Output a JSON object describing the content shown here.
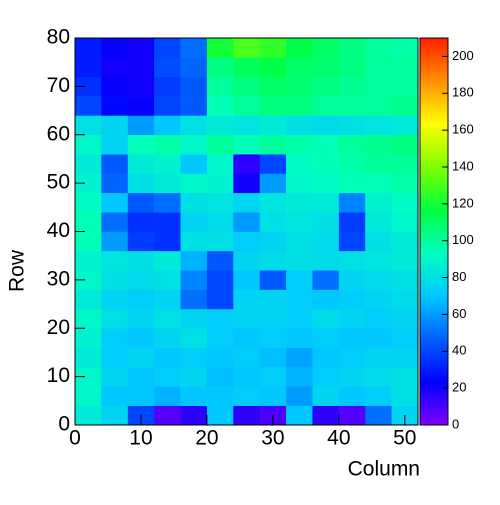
{
  "chart_data": {
    "type": "heatmap",
    "xlabel": "Column",
    "ylabel": "Row",
    "x_bins": [
      0,
      4,
      8,
      12,
      16,
      20,
      24,
      28,
      32,
      36,
      40,
      44,
      48,
      52
    ],
    "y_bins": [
      0,
      4,
      8,
      12,
      16,
      20,
      24,
      28,
      32,
      36,
      40,
      44,
      48,
      52,
      56,
      60,
      64,
      68,
      72,
      76,
      80
    ],
    "z": [
      [
        85,
        75,
        40,
        8,
        15,
        70,
        15,
        10,
        70,
        15,
        8,
        50,
        75
      ],
      [
        90,
        70,
        70,
        65,
        70,
        70,
        72,
        70,
        60,
        75,
        70,
        72,
        80
      ],
      [
        90,
        75,
        70,
        72,
        75,
        68,
        70,
        72,
        65,
        72,
        75,
        78,
        80
      ],
      [
        85,
        72,
        75,
        70,
        72,
        70,
        72,
        68,
        62,
        70,
        72,
        75,
        75
      ],
      [
        88,
        72,
        70,
        75,
        80,
        72,
        70,
        72,
        70,
        72,
        70,
        70,
        72
      ],
      [
        90,
        80,
        75,
        80,
        75,
        72,
        75,
        75,
        72,
        78,
        75,
        72,
        75
      ],
      [
        85,
        75,
        72,
        75,
        50,
        40,
        75,
        75,
        72,
        70,
        72,
        75,
        78
      ],
      [
        90,
        80,
        78,
        80,
        55,
        40,
        70,
        45,
        72,
        50,
        75,
        78,
        80
      ],
      [
        88,
        82,
        80,
        85,
        65,
        45,
        75,
        78,
        80,
        78,
        80,
        82,
        85
      ],
      [
        95,
        60,
        38,
        35,
        80,
        80,
        72,
        75,
        80,
        78,
        40,
        80,
        85
      ],
      [
        95,
        50,
        35,
        35,
        75,
        78,
        60,
        80,
        82,
        80,
        38,
        85,
        90
      ],
      [
        92,
        70,
        45,
        50,
        80,
        82,
        75,
        82,
        85,
        85,
        55,
        88,
        92
      ],
      [
        88,
        48,
        80,
        85,
        90,
        88,
        20,
        60,
        90,
        92,
        95,
        95,
        98
      ],
      [
        85,
        45,
        85,
        88,
        70,
        90,
        15,
        40,
        92,
        95,
        98,
        100,
        100
      ],
      [
        90,
        75,
        95,
        98,
        90,
        100,
        95,
        100,
        98,
        95,
        100,
        102,
        105
      ],
      [
        80,
        75,
        60,
        70,
        80,
        85,
        82,
        85,
        80,
        78,
        80,
        82,
        85
      ],
      [
        40,
        25,
        22,
        40,
        45,
        95,
        100,
        105,
        105,
        100,
        100,
        100,
        102
      ],
      [
        35,
        22,
        20,
        38,
        45,
        100,
        105,
        110,
        108,
        105,
        102,
        100,
        100
      ],
      [
        30,
        20,
        20,
        42,
        48,
        105,
        112,
        115,
        110,
        108,
        105,
        100,
        100
      ],
      [
        30,
        22,
        20,
        40,
        50,
        120,
        130,
        125,
        115,
        110,
        105,
        100,
        98
      ]
    ],
    "xlim": [
      0,
      52
    ],
    "xticks": [
      0,
      10,
      20,
      30,
      40,
      50
    ],
    "ylim": [
      0,
      80
    ],
    "yticks": [
      0,
      10,
      20,
      30,
      40,
      50,
      60,
      70,
      80
    ],
    "zlim": [
      0,
      210
    ],
    "zticks": [
      0,
      20,
      40,
      60,
      80,
      100,
      120,
      140,
      160,
      180,
      200
    ],
    "colors": [
      "#8000ff",
      "#0000ff",
      "#0060ff",
      "#00c8ff",
      "#00ffc0",
      "#00ff40",
      "#80ff00",
      "#ffff00",
      "#ff9000",
      "#ff2000"
    ]
  }
}
